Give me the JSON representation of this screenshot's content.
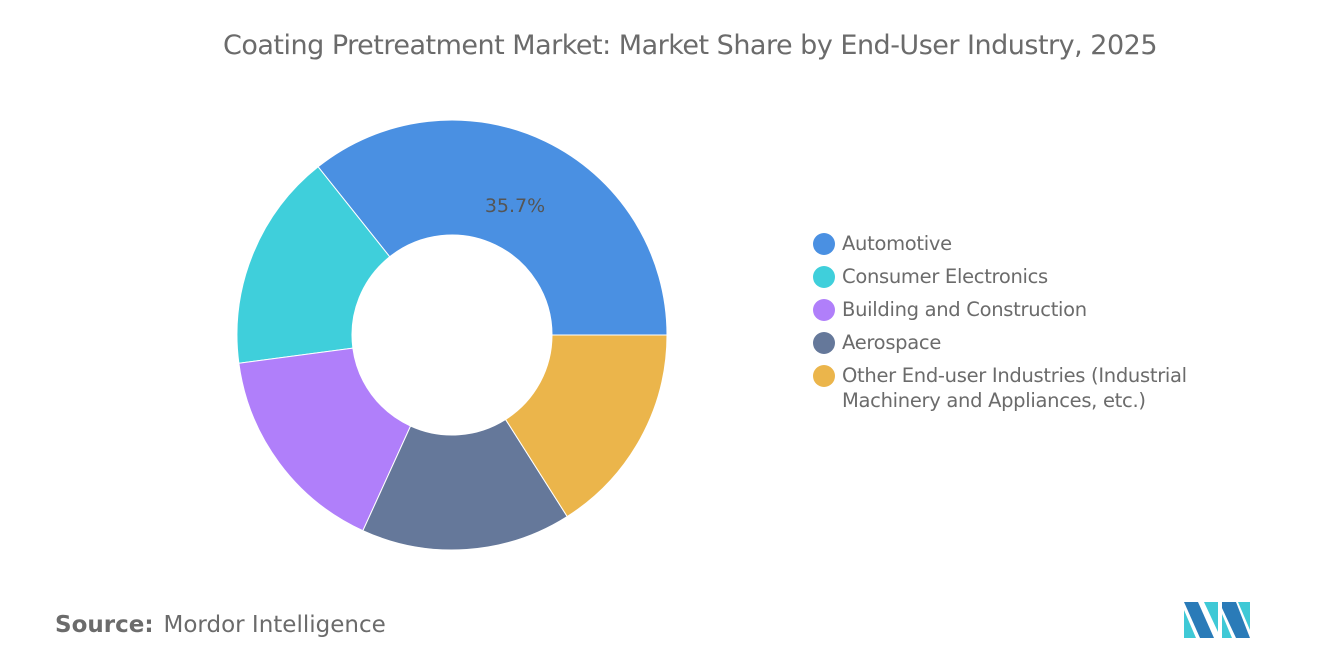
{
  "chart_data": {
    "type": "pie",
    "variant": "donut",
    "title": "Coating Pretreatment Market: Market Share by End-User Industry, 2025",
    "categories": [
      "Automotive",
      "Consumer Electronics",
      "Building and Construction",
      "Aerospace",
      "Other End-user Industries (Industrial Machinery and Appliances, etc.)"
    ],
    "values": [
      35.7,
      16.4,
      16.1,
      15.8,
      16.0
    ],
    "unit": "%",
    "data_labels": [
      {
        "category": "Automotive",
        "text": "35.7%"
      }
    ],
    "colors": [
      "#4A90E2",
      "#3FCFDB",
      "#B07FFA",
      "#65789A",
      "#EBB54B"
    ],
    "legend_position": "right"
  },
  "source": {
    "label": "Source:",
    "value": "Mordor Intelligence"
  },
  "logo": {
    "name": "mordor-intelligence-logo",
    "colors": [
      "#2A7BB8",
      "#3FC9D6"
    ]
  }
}
